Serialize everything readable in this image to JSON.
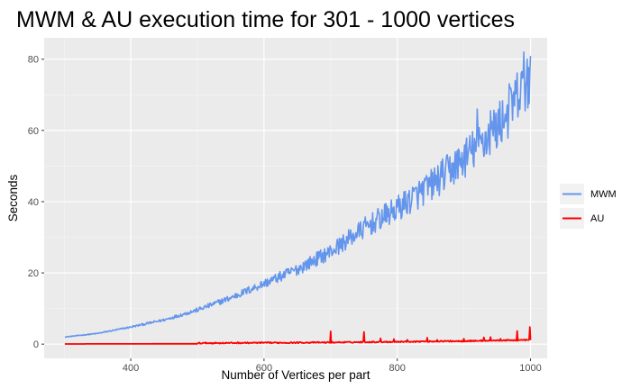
{
  "chart_data": {
    "type": "line",
    "title": "MWM & AU execution time  for 301 - 1000 vertices",
    "xlabel": "Number of Vertices per part",
    "ylabel": "Seconds",
    "xlim": [
      270,
      1025
    ],
    "ylim": [
      -4,
      86
    ],
    "x_ticks": [
      400,
      600,
      800,
      1000
    ],
    "y_ticks": [
      0,
      20,
      40,
      60,
      80
    ],
    "x_minor": [
      300,
      500,
      700,
      900
    ],
    "y_minor": [
      10,
      30,
      50,
      70
    ],
    "grid": true,
    "legend_position": "right",
    "series": [
      {
        "name": "MWM",
        "color": "#6495ED",
        "x_start": 301,
        "x_end": 1000,
        "trend": [
          [
            301,
            2.0
          ],
          [
            350,
            3.0
          ],
          [
            400,
            4.8
          ],
          [
            450,
            6.8
          ],
          [
            500,
            9.6
          ],
          [
            550,
            13.0
          ],
          [
            600,
            17.0
          ],
          [
            650,
            21.0
          ],
          [
            700,
            26.0
          ],
          [
            750,
            32.5
          ],
          [
            800,
            38.0
          ],
          [
            850,
            44.5
          ],
          [
            900,
            52.0
          ],
          [
            950,
            61.0
          ],
          [
            1000,
            74.0
          ]
        ],
        "peaks": [
          [
            920,
            66.0
          ],
          [
            940,
            65.5
          ],
          [
            970,
            72.0
          ],
          [
            990,
            82.0
          ],
          [
            995,
            80.0
          ]
        ]
      },
      {
        "name": "AU",
        "color": "#FF0000",
        "x_start": 301,
        "x_end": 1000,
        "trend": [
          [
            301,
            0.05
          ],
          [
            500,
            0.1
          ],
          [
            700,
            0.3
          ],
          [
            800,
            0.5
          ],
          [
            900,
            0.7
          ],
          [
            1000,
            1.0
          ]
        ],
        "peaks": [
          [
            700,
            3.6
          ],
          [
            750,
            3.4
          ],
          [
            775,
            1.6
          ],
          [
            795,
            1.4
          ],
          [
            815,
            1.2
          ],
          [
            845,
            1.8
          ],
          [
            860,
            1.2
          ],
          [
            880,
            1.0
          ],
          [
            900,
            1.5
          ],
          [
            930,
            1.9
          ],
          [
            940,
            2.0
          ],
          [
            955,
            1.5
          ],
          [
            980,
            3.7
          ],
          [
            995,
            1.2
          ],
          [
            999,
            4.8
          ]
        ]
      }
    ]
  }
}
